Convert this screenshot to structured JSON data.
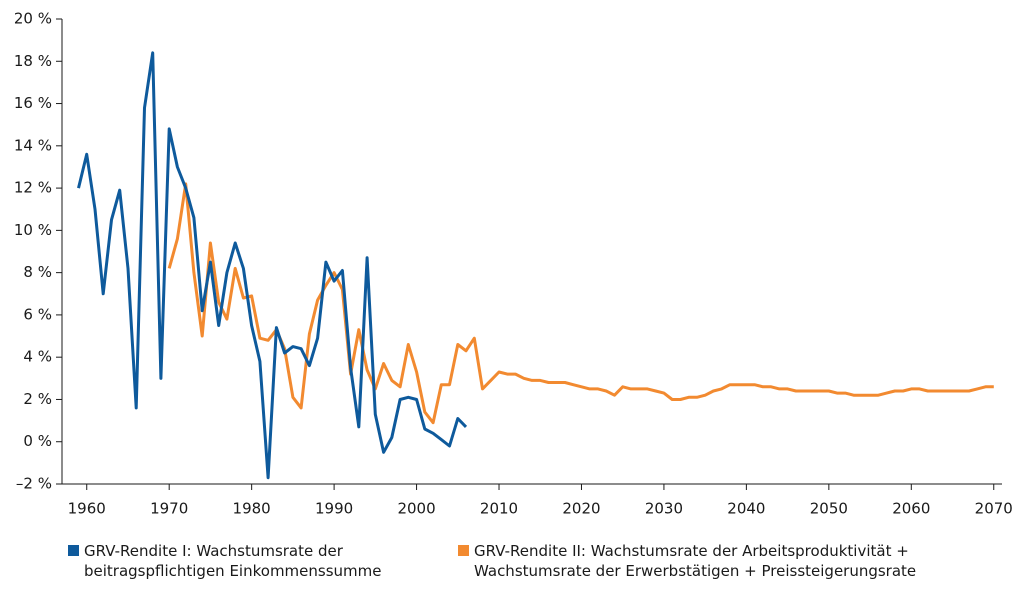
{
  "chart_data": {
    "type": "line",
    "xlim": [
      1957,
      2071
    ],
    "xticks": [
      1960,
      1970,
      1980,
      1990,
      2000,
      2010,
      2020,
      2030,
      2040,
      2050,
      2060,
      2070
    ],
    "ylim": [
      -2,
      20
    ],
    "yticks": [
      {
        "value": -2,
        "label": "–2 %"
      },
      {
        "value": 0,
        "label": "0 %"
      },
      {
        "value": 2,
        "label": "2 %"
      },
      {
        "value": 4,
        "label": "4 %"
      },
      {
        "value": 6,
        "label": "6 %"
      },
      {
        "value": 8,
        "label": "8 %"
      },
      {
        "value": 10,
        "label": "10 %"
      },
      {
        "value": 12,
        "label": "12 %"
      },
      {
        "value": 14,
        "label": "14 %"
      },
      {
        "value": 16,
        "label": "16 %"
      },
      {
        "value": 18,
        "label": "18 %"
      },
      {
        "value": 20,
        "label": "20 %"
      }
    ],
    "series": [
      {
        "name": "GRV-Rendite I: Wachstumsrate der beitragspflichtigen Einkommenssumme",
        "color": "#0e5a9c",
        "x": [
          1959,
          1960,
          1961,
          1962,
          1963,
          1964,
          1965,
          1966,
          1967,
          1968,
          1969,
          1970,
          1971,
          1972,
          1973,
          1974,
          1975,
          1976,
          1977,
          1978,
          1979,
          1980,
          1981,
          1982,
          1983,
          1984,
          1985,
          1986,
          1987,
          1988,
          1989,
          1990,
          1991,
          1992,
          1993,
          1994,
          1995,
          1996,
          1997,
          1998,
          1999,
          2000,
          2001,
          2002,
          2003,
          2004,
          2005,
          2006
        ],
        "values": [
          12.0,
          13.6,
          11.0,
          7.0,
          10.5,
          11.9,
          8.2,
          1.6,
          15.8,
          18.4,
          3.0,
          14.8,
          13.0,
          12.0,
          10.6,
          6.2,
          8.5,
          5.5,
          8.0,
          9.4,
          8.2,
          5.5,
          3.8,
          -1.7,
          5.4,
          4.2,
          4.5,
          4.4,
          3.6,
          4.9,
          8.5,
          7.6,
          8.1,
          3.5,
          0.7,
          8.7,
          1.3,
          -0.5,
          0.2,
          2.0,
          2.1,
          2.0,
          0.6,
          0.4,
          0.1,
          -0.2,
          1.1,
          0.7
        ]
      },
      {
        "name": "GRV-Rendite II: Wachstumsrate der Arbeitsproduktivität + Wachstumsrate der Erwerbstätigen + Preissteigerungsrate",
        "color": "#f28a30",
        "x": [
          1970,
          1971,
          1972,
          1973,
          1974,
          1975,
          1976,
          1977,
          1978,
          1979,
          1980,
          1981,
          1982,
          1983,
          1984,
          1985,
          1986,
          1987,
          1988,
          1989,
          1990,
          1991,
          1992,
          1993,
          1994,
          1995,
          1996,
          1997,
          1998,
          1999,
          2000,
          2001,
          2002,
          2003,
          2004,
          2005,
          2006,
          2007,
          2008,
          2009,
          2010,
          2011,
          2012,
          2013,
          2014,
          2015,
          2016,
          2017,
          2018,
          2019,
          2020,
          2021,
          2022,
          2023,
          2024,
          2025,
          2026,
          2027,
          2028,
          2029,
          2030,
          2031,
          2032,
          2033,
          2034,
          2035,
          2036,
          2037,
          2038,
          2039,
          2040,
          2041,
          2042,
          2043,
          2044,
          2045,
          2046,
          2047,
          2048,
          2049,
          2050,
          2051,
          2052,
          2053,
          2054,
          2055,
          2056,
          2057,
          2058,
          2059,
          2060,
          2061,
          2062,
          2063,
          2064,
          2065,
          2066,
          2067,
          2068,
          2069,
          2070
        ],
        "values": [
          8.2,
          9.6,
          12.2,
          8.0,
          5.0,
          9.4,
          6.6,
          5.8,
          8.2,
          6.8,
          6.9,
          4.9,
          4.8,
          5.3,
          4.4,
          2.1,
          1.6,
          5.1,
          6.7,
          7.4,
          8.0,
          7.2,
          3.2,
          5.3,
          3.4,
          2.5,
          3.7,
          2.9,
          2.6,
          4.6,
          3.3,
          1.4,
          0.9,
          2.7,
          2.7,
          4.6,
          4.3,
          4.9,
          2.5,
          2.9,
          3.3,
          3.2,
          3.2,
          3.0,
          2.9,
          2.9,
          2.8,
          2.8,
          2.8,
          2.7,
          2.6,
          2.5,
          2.5,
          2.4,
          2.2,
          2.6,
          2.5,
          2.5,
          2.5,
          2.4,
          2.3,
          2.0,
          2.0,
          2.1,
          2.1,
          2.2,
          2.4,
          2.5,
          2.7,
          2.7,
          2.7,
          2.7,
          2.6,
          2.6,
          2.5,
          2.5,
          2.4,
          2.4,
          2.4,
          2.4,
          2.4,
          2.3,
          2.3,
          2.2,
          2.2,
          2.2,
          2.2,
          2.3,
          2.4,
          2.4,
          2.5,
          2.5,
          2.4,
          2.4,
          2.4,
          2.4,
          2.4,
          2.4,
          2.5,
          2.6,
          2.6
        ]
      }
    ]
  }
}
